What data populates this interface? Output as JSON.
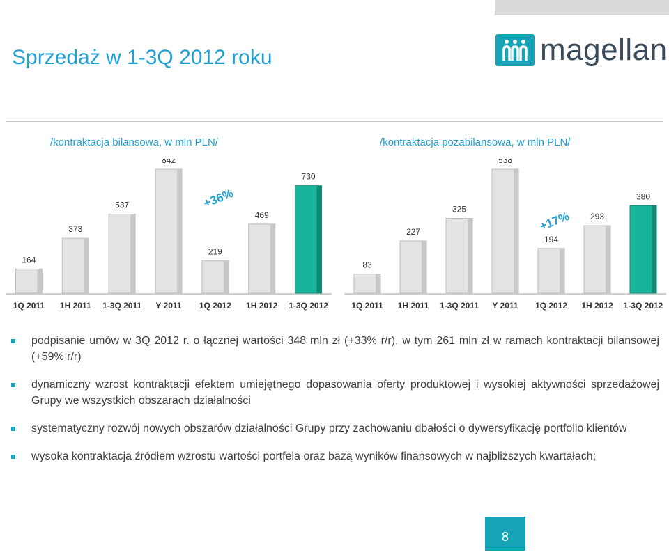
{
  "title": "Sprzedaż w 1-3Q 2012 roku",
  "logo": {
    "text": "magellan"
  },
  "page_number": "8",
  "bullets": [
    "podpisanie umów w 3Q 2012 r. o łącznej wartości 348 mln zł (+33% r/r), w tym 261 mln zł w ramach kontraktacji bilansowej (+59% r/r)",
    "dynamiczny wzrost kontraktacji efektem umiejętnego dopasowania oferty produktowej i wysokiej aktywności sprzedażowej Grupy we wszystkich obszarach działalności",
    "systematyczny rozwój nowych obszarów działalności Grupy przy zachowaniu dbałości o dywersyfikację portfolio klientów",
    "wysoka kontraktacja źródłem wzrostu wartości portfela oraz bazą wyników finansowych w najbliższych kwartałach;"
  ],
  "colors": {
    "accent": "#1f9fd3",
    "teal": "#17a3b6",
    "bar_gray": "#e3e3e3",
    "highlight": "#19b59a"
  },
  "chart_data": [
    {
      "type": "bar",
      "title": "/kontraktacja bilansowa, w mln PLN/",
      "categories": [
        "1Q 2011",
        "1H 2011",
        "1-3Q 2011",
        "Y 2011",
        "1Q 2012",
        "1H 2012",
        "1-3Q 2012"
      ],
      "values": [
        164,
        373,
        537,
        842,
        219,
        469,
        730
      ],
      "highlight_index": 6,
      "annotation": "+36%",
      "ylim": [
        0,
        842
      ]
    },
    {
      "type": "bar",
      "title": "/kontraktacja pozabilansowa, w mln PLN/",
      "categories": [
        "1Q 2011",
        "1H 2011",
        "1-3Q 2011",
        "Y 2011",
        "1Q 2012",
        "1H 2012",
        "1-3Q 2012"
      ],
      "values": [
        83,
        227,
        325,
        538,
        194,
        293,
        380
      ],
      "highlight_index": 6,
      "annotation": "+17%",
      "ylim": [
        0,
        538
      ]
    }
  ]
}
